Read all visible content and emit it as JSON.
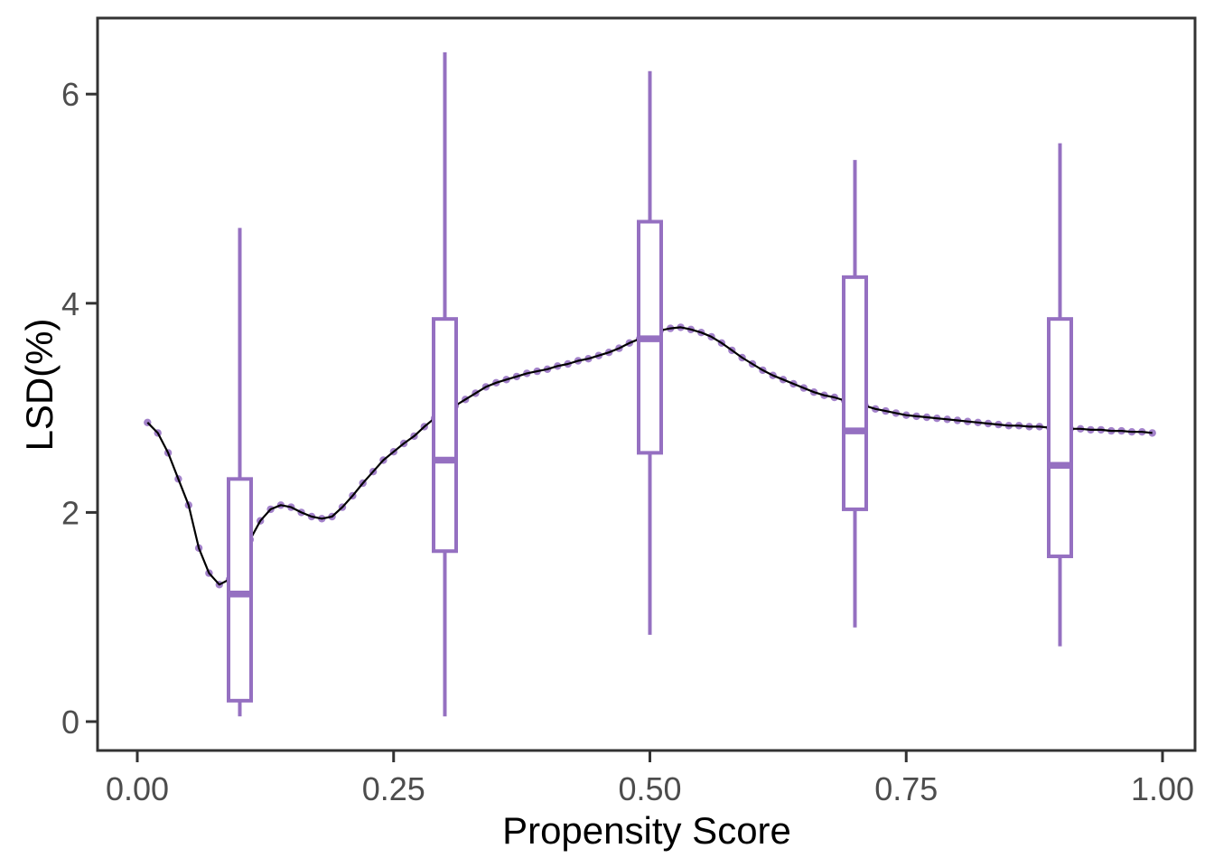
{
  "chart_data": {
    "type": "boxplot",
    "subtype": "boxplots-with-smoothed-dotted-line",
    "title": "",
    "xlabel": "Propensity Score",
    "ylabel": "LSD(%)",
    "x_ticks": [
      "0.00",
      "0.25",
      "0.50",
      "0.75",
      "1.00"
    ],
    "x_tick_values": [
      0,
      0.25,
      0.5,
      0.75,
      1.0
    ],
    "y_ticks": [
      "0",
      "2",
      "4",
      "6"
    ],
    "y_tick_values": [
      0,
      2,
      4,
      6
    ],
    "xlim": [
      -0.041,
      1.032
    ],
    "ylim": [
      -0.27,
      6.73
    ],
    "grid": false,
    "legend_position": "none",
    "boxplots": [
      {
        "x": 0.1,
        "min": 0.05,
        "q1": 0.2,
        "median": 1.22,
        "q3": 2.32,
        "max": 4.72
      },
      {
        "x": 0.3,
        "min": 0.05,
        "q1": 1.63,
        "median": 2.5,
        "q3": 3.85,
        "max": 6.4
      },
      {
        "x": 0.5,
        "min": 0.83,
        "q1": 2.57,
        "median": 3.66,
        "q3": 4.78,
        "max": 6.22
      },
      {
        "x": 0.7,
        "min": 0.9,
        "q1": 2.03,
        "median": 2.78,
        "q3": 4.25,
        "max": 5.37
      },
      {
        "x": 0.9,
        "min": 0.72,
        "q1": 1.58,
        "median": 2.45,
        "q3": 3.85,
        "max": 5.53
      }
    ],
    "line_series": {
      "name": "smoothed-LSD-curve",
      "x": [
        0.01,
        0.02,
        0.03,
        0.04,
        0.05,
        0.06,
        0.07,
        0.08,
        0.09,
        0.1,
        0.11,
        0.12,
        0.13,
        0.14,
        0.15,
        0.16,
        0.17,
        0.18,
        0.19,
        0.2,
        0.21,
        0.22,
        0.23,
        0.24,
        0.25,
        0.26,
        0.27,
        0.28,
        0.29,
        0.3,
        0.31,
        0.32,
        0.33,
        0.34,
        0.35,
        0.36,
        0.37,
        0.38,
        0.39,
        0.4,
        0.41,
        0.42,
        0.43,
        0.44,
        0.45,
        0.46,
        0.47,
        0.48,
        0.49,
        0.5,
        0.51,
        0.52,
        0.53,
        0.54,
        0.55,
        0.56,
        0.57,
        0.58,
        0.59,
        0.6,
        0.61,
        0.62,
        0.63,
        0.64,
        0.65,
        0.66,
        0.67,
        0.68,
        0.69,
        0.7,
        0.71,
        0.72,
        0.73,
        0.74,
        0.75,
        0.76,
        0.77,
        0.78,
        0.79,
        0.8,
        0.81,
        0.82,
        0.83,
        0.84,
        0.85,
        0.86,
        0.87,
        0.88,
        0.89,
        0.9,
        0.91,
        0.92,
        0.93,
        0.94,
        0.95,
        0.96,
        0.97,
        0.98,
        0.99
      ],
      "y": [
        2.86,
        2.76,
        2.57,
        2.32,
        2.07,
        1.66,
        1.42,
        1.31,
        1.36,
        1.5,
        1.74,
        1.92,
        2.03,
        2.07,
        2.05,
        2.0,
        1.96,
        1.94,
        1.96,
        2.05,
        2.16,
        2.28,
        2.39,
        2.5,
        2.58,
        2.66,
        2.73,
        2.82,
        2.9,
        2.97,
        3.02,
        3.08,
        3.14,
        3.2,
        3.24,
        3.27,
        3.3,
        3.33,
        3.35,
        3.37,
        3.4,
        3.42,
        3.45,
        3.47,
        3.5,
        3.53,
        3.57,
        3.62,
        3.66,
        3.7,
        3.74,
        3.76,
        3.77,
        3.75,
        3.72,
        3.68,
        3.62,
        3.55,
        3.48,
        3.42,
        3.36,
        3.31,
        3.27,
        3.23,
        3.19,
        3.15,
        3.12,
        3.1,
        3.07,
        3.05,
        3.02,
        2.99,
        2.97,
        2.95,
        2.93,
        2.92,
        2.91,
        2.9,
        2.89,
        2.88,
        2.87,
        2.86,
        2.85,
        2.84,
        2.83,
        2.83,
        2.82,
        2.82,
        2.81,
        2.81,
        2.8,
        2.8,
        2.79,
        2.79,
        2.78,
        2.78,
        2.77,
        2.77,
        2.76
      ]
    },
    "colors": {
      "box_stroke": "#9570C1",
      "box_fill": "#FFFFFF",
      "points": "#9B77C6",
      "line": "#000000",
      "panel_border": "#333333",
      "tick_mark": "#333333",
      "axis_text": "#4D4D4D",
      "axis_title": "#000000",
      "background": "#FFFFFF"
    }
  }
}
